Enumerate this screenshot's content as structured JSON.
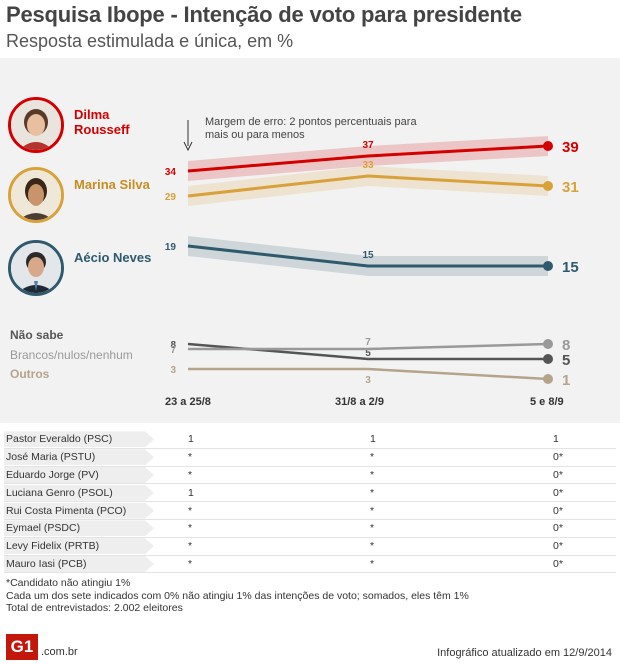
{
  "header": {
    "title": "Pesquisa Ibope - Intenção de voto para presidente",
    "subtitle": "Resposta estimulada e única, em %"
  },
  "margin_note": "Margem de erro: 2 pontos percentuais para mais ou para menos",
  "candidates": [
    {
      "name": "Dilma Rousseff",
      "color": "#d40000",
      "avatar_icon": "dilma-portrait-icon"
    },
    {
      "name": "Marina Silva",
      "color": "#d9a13a",
      "avatar_icon": "marina-portrait-icon"
    },
    {
      "name": "Aécio Neves",
      "color": "#2f5a6e",
      "avatar_icon": "aecio-portrait-icon"
    }
  ],
  "categories_labels": [
    "Não sabe",
    "Brancos/nulos/nenhum",
    "Outros"
  ],
  "chart_data": {
    "type": "line",
    "x": [
      "23 a 25/8",
      "31/8 a 2/9",
      "5 e 8/9"
    ],
    "margin_of_error": 2,
    "series": [
      {
        "name": "Dilma Rousseff",
        "values": [
          34,
          37,
          39
        ],
        "color": "#d40000",
        "band": true
      },
      {
        "name": "Marina Silva",
        "values": [
          29,
          33,
          31
        ],
        "color": "#d9a13a",
        "band": true
      },
      {
        "name": "Aécio Neves",
        "values": [
          19,
          15,
          15
        ],
        "color": "#2f5a6e",
        "band": true
      },
      {
        "name": "Não sabe",
        "values": [
          8,
          5,
          5
        ],
        "color": "#555555",
        "band": false
      },
      {
        "name": "Brancos/nulos/nenhum",
        "values": [
          7,
          7,
          8
        ],
        "color": "#999999",
        "band": false
      },
      {
        "name": "Outros",
        "values": [
          3,
          3,
          1
        ],
        "color": "#b5a48a",
        "band": false
      }
    ]
  },
  "others_table": [
    {
      "name": "Pastor Everaldo (PSC)",
      "values": [
        "1",
        "1",
        "1"
      ]
    },
    {
      "name": "José Maria (PSTU)",
      "values": [
        "*",
        "*",
        "0*"
      ]
    },
    {
      "name": "Eduardo Jorge (PV)",
      "values": [
        "*",
        "*",
        "0*"
      ]
    },
    {
      "name": "Luciana Genro (PSOL)",
      "values": [
        "1",
        "*",
        "0*"
      ]
    },
    {
      "name": "Rui Costa Pimenta (PCO)",
      "values": [
        "*",
        "*",
        "0*"
      ]
    },
    {
      "name": "Eymael (PSDC)",
      "values": [
        "*",
        "*",
        "0*"
      ]
    },
    {
      "name": "Levy Fidelix (PRTB)",
      "values": [
        "*",
        "*",
        "0*"
      ]
    },
    {
      "name": "Mauro Iasi (PCB)",
      "values": [
        "*",
        "*",
        "0*"
      ]
    }
  ],
  "footnotes": [
    "*Candidato não atingiu 1%",
    "Cada um dos sete indicados com 0% não atingiu 1% das intenções de voto; somados, eles têm 1%",
    "Total de entrevistados: 2.002 eleitores"
  ],
  "footer": {
    "logo": "G1",
    "logo_suffix": ".com.br",
    "updated": "Infográfico atualizado em 12/9/2014"
  }
}
